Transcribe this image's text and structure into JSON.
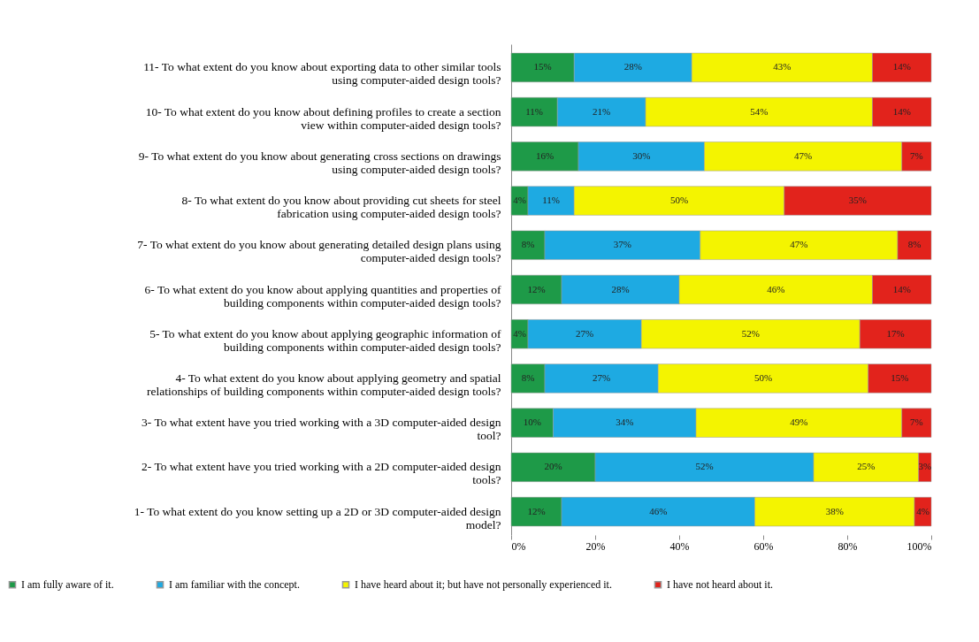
{
  "chart_data": {
    "type": "bar",
    "orientation": "horizontal",
    "stacked": true,
    "categories": [
      "11- To what extent do you know about exporting data to other similar tools using computer-aided design tools?",
      "10- To what extent do you know about defining profiles to create a section view within computer-aided design tools?",
      "9- To what extent do you know about generating cross sections on drawings using computer-aided design tools?",
      "8- To what extent do you know about providing cut sheets for steel fabrication using computer-aided design tools?",
      "7- To what extent do you know about generating detailed design plans using computer-aided design tools?",
      "6- To what extent do you know about applying quantities and properties of building components within computer-aided design tools?",
      "5- To what extent do you know about applying geographic information of building components within computer-aided design tools?",
      "4- To what extent do you know about applying geometry and spatial relationships of building components within computer-aided design tools?",
      "3- To what extent have you tried working with a 3D computer-aided design tool?",
      "2- To what extent have you tried working with a 2D computer-aided design tools?",
      "1- To what extent do you know setting up a 2D or 3D computer-aided design model?"
    ],
    "series": [
      {
        "name": "I am fully aware of it.",
        "color": "#1e9a48",
        "values": [
          15,
          11,
          16,
          4,
          8,
          12,
          4,
          8,
          10,
          20,
          12
        ]
      },
      {
        "name": "I am familiar with the concept.",
        "color": "#1eaae2",
        "values": [
          28,
          21,
          30,
          11,
          37,
          28,
          27,
          27,
          34,
          52,
          46
        ]
      },
      {
        "name": "I have heard about it; but have not personally experienced it.",
        "color": "#f4f400",
        "values": [
          43,
          54,
          47,
          50,
          47,
          46,
          52,
          50,
          49,
          25,
          38
        ]
      },
      {
        "name": "I have not heard about it.",
        "color": "#e2231c",
        "values": [
          14,
          14,
          7,
          35,
          8,
          14,
          17,
          15,
          7,
          3,
          4
        ]
      }
    ],
    "xlim": [
      0,
      100
    ],
    "xticks": [
      {
        "value": 0,
        "label": "0%"
      },
      {
        "value": 20,
        "label": "20%"
      },
      {
        "value": 40,
        "label": "40%"
      },
      {
        "value": 60,
        "label": "60%"
      },
      {
        "value": 80,
        "label": "80%"
      },
      {
        "value": 100,
        "label": "100%"
      }
    ],
    "value_labels": [
      [
        "15%",
        "11%",
        "16%",
        "4%",
        "8%",
        "12%",
        "4%",
        "8%",
        "10%",
        "20%",
        "12%"
      ],
      [
        "28%",
        "21%",
        "30%",
        "11%",
        "37%",
        "28%",
        "27%",
        "27%",
        "34%",
        "52%",
        "46%"
      ],
      [
        "43%",
        "54%",
        "47%",
        "50%",
        "47%",
        "46%",
        "52%",
        "50%",
        "49%",
        "25%",
        "38%"
      ],
      [
        "14%",
        "14%",
        "7%",
        "35%",
        "8%",
        "14%",
        "17%",
        "15%",
        "7%",
        "3%",
        "4%"
      ]
    ],
    "legend": "bottom",
    "grid": false
  }
}
